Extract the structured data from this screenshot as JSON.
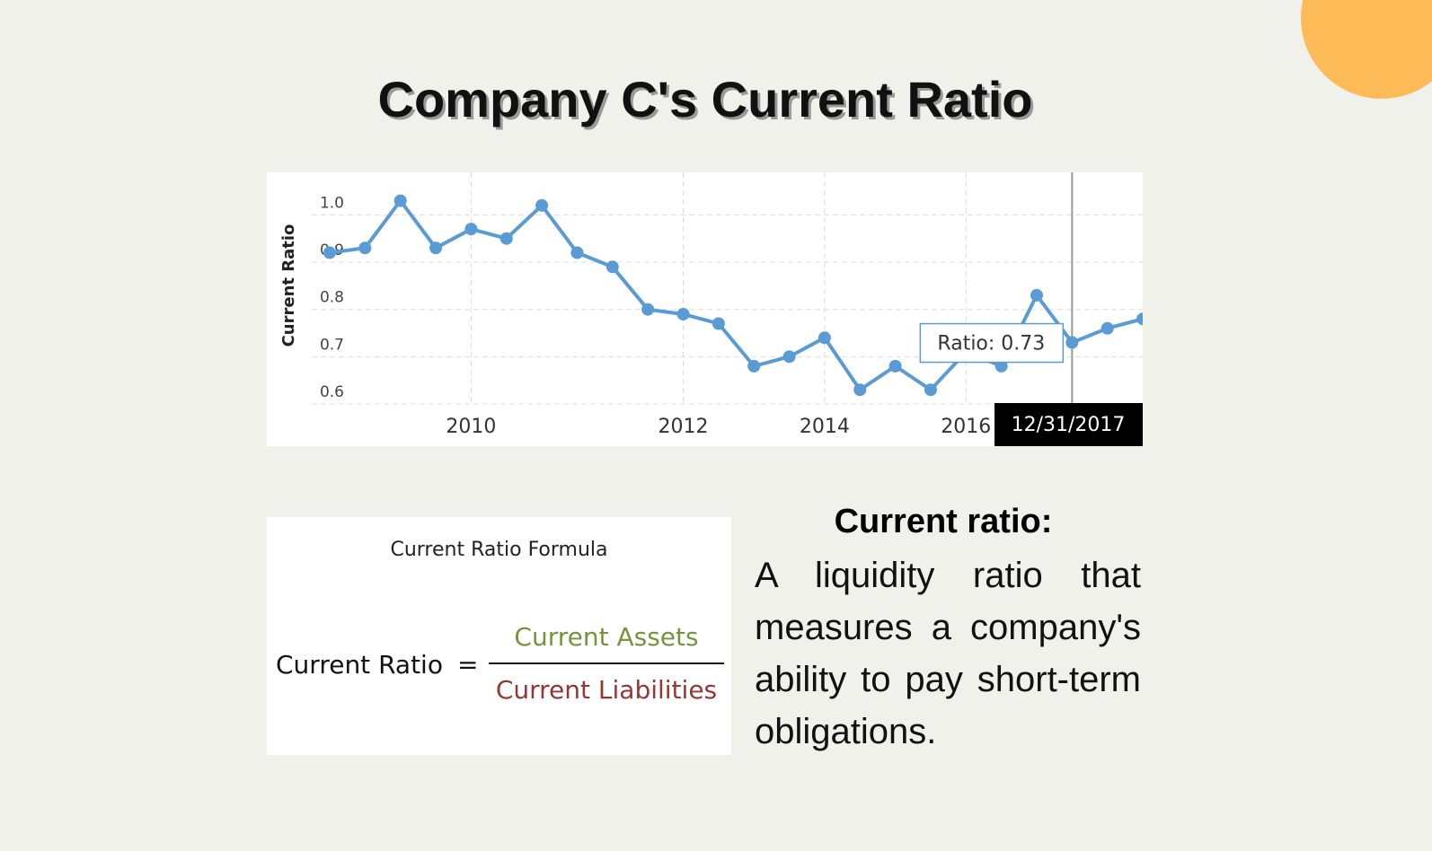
{
  "title": "Company C's Current Ratio",
  "chart_data": {
    "type": "line",
    "y_label": "Current Ratio",
    "categories": [
      null,
      null,
      null,
      null,
      "2010",
      null,
      null,
      null,
      null,
      null,
      "2012",
      null,
      null,
      null,
      "2014",
      null,
      null,
      null,
      "2016",
      null,
      null,
      "12/31/2017",
      null,
      null
    ],
    "series": [
      {
        "name": "Ratio",
        "color": "#5b9bd5",
        "values": [
          0.92,
          0.93,
          1.03,
          0.93,
          0.97,
          0.95,
          1.02,
          0.92,
          0.89,
          0.8,
          0.79,
          0.77,
          0.68,
          0.7,
          0.74,
          0.63,
          0.68,
          0.63,
          0.71,
          0.68,
          0.83,
          0.73,
          0.76,
          0.78
        ]
      }
    ],
    "ylim": [
      0.6,
      1.09
    ],
    "yticks": [
      0.6,
      0.7,
      0.8,
      0.9,
      {
        "value": 1,
        "label": "1.0"
      }
    ],
    "grid": true,
    "tooltip": "Ratio: 0.73"
  },
  "formula": {
    "heading": "Current Ratio Formula",
    "left": "Current Ratio",
    "equals": "=",
    "numerator": "Current Assets",
    "denominator": "Current Liabilities"
  },
  "definition": {
    "heading": "Current ratio:",
    "text": "A liquidity ratio that measures a company's ability to pay short-term obligations."
  }
}
